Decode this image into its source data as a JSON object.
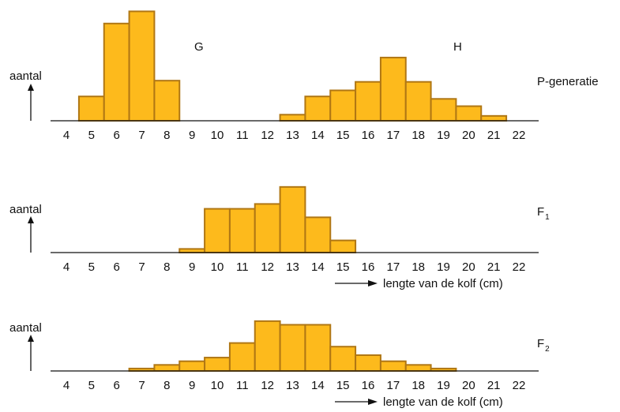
{
  "chart_data": [
    {
      "type": "histogram",
      "generation": "P-generatie",
      "ylabel": "aantal",
      "x_ticks": [
        "4",
        "5",
        "6",
        "7",
        "8",
        "9",
        "10",
        "11",
        "12",
        "13",
        "14",
        "15",
        "16",
        "17",
        "18",
        "19",
        "20",
        "21",
        "22"
      ],
      "series": [
        {
          "name": "G",
          "x": [
            5,
            6,
            7,
            8
          ],
          "values": [
            2,
            8,
            9,
            3.3
          ]
        },
        {
          "name": "H",
          "x": [
            13,
            14,
            15,
            16,
            17,
            18,
            19,
            20,
            21
          ],
          "values": [
            0.5,
            2,
            2.5,
            3.2,
            5.2,
            3.2,
            1.8,
            1.2,
            0.4
          ]
        }
      ]
    },
    {
      "type": "histogram",
      "generation": "F",
      "generation_sub": "1",
      "ylabel": "aantal",
      "xlabel": "lengte van de kolf (cm)",
      "x_ticks": [
        "4",
        "5",
        "6",
        "7",
        "8",
        "9",
        "10",
        "11",
        "12",
        "13",
        "14",
        "15",
        "16",
        "17",
        "18",
        "19",
        "20",
        "21",
        "22"
      ],
      "series": [
        {
          "x": [
            9,
            10,
            11,
            12,
            13,
            14,
            15
          ],
          "values": [
            0.3,
            3.6,
            3.6,
            4,
            5.4,
            2.9,
            1
          ]
        }
      ]
    },
    {
      "type": "histogram",
      "generation": "F",
      "generation_sub": "2",
      "ylabel": "aantal",
      "xlabel": "lengte van de kolf (cm)",
      "x_ticks": [
        "4",
        "5",
        "6",
        "7",
        "8",
        "9",
        "10",
        "11",
        "12",
        "13",
        "14",
        "15",
        "16",
        "17",
        "18",
        "19",
        "20",
        "21",
        "22"
      ],
      "series": [
        {
          "x": [
            7,
            8,
            9,
            10,
            11,
            12,
            13,
            14,
            15,
            16,
            17,
            18,
            19
          ],
          "values": [
            0.2,
            0.5,
            0.8,
            1.1,
            2.3,
            4.1,
            3.8,
            3.8,
            2,
            1.3,
            0.8,
            0.5,
            0.2
          ]
        }
      ]
    }
  ]
}
